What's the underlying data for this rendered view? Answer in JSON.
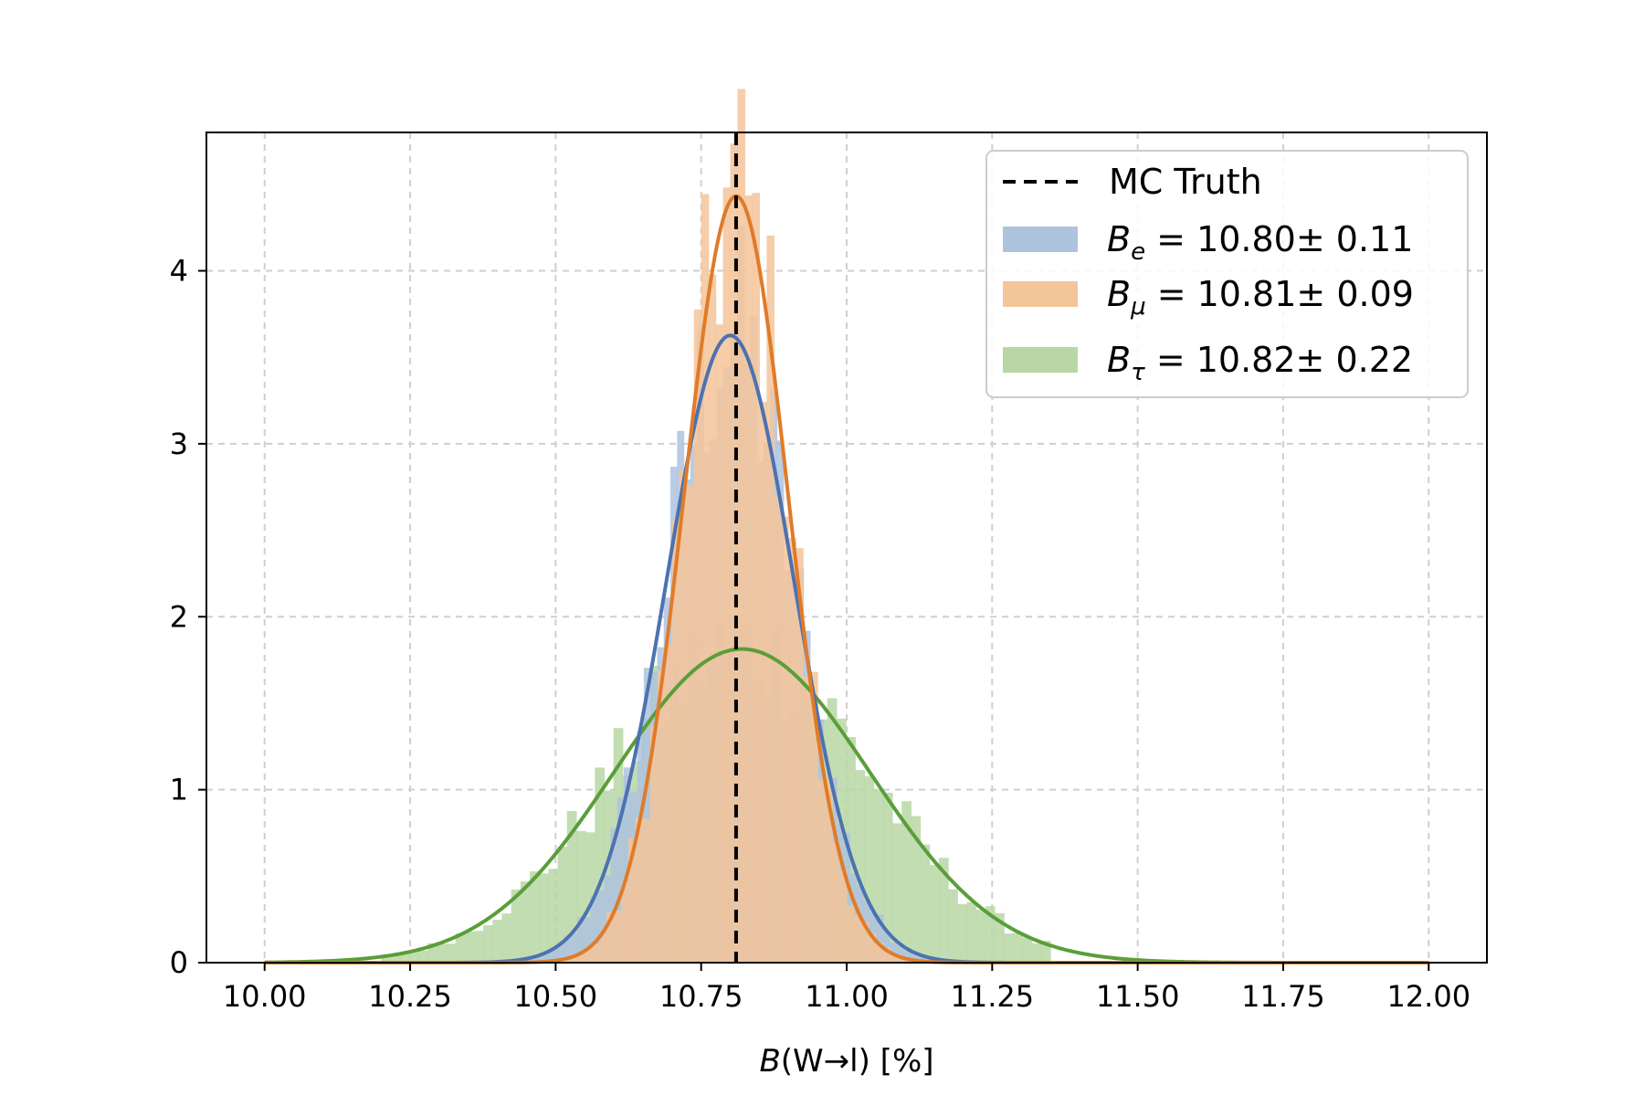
{
  "chart_data": {
    "type": "bar",
    "xlabel": {
      "symbol": "B",
      "args": "(W→l)",
      "unit": " [%]"
    },
    "ylabel": "",
    "xlim": [
      9.9,
      12.1
    ],
    "ylim": [
      0,
      4.8
    ],
    "xticks": [
      "10.00",
      "10.25",
      "10.50",
      "10.75",
      "11.00",
      "11.25",
      "11.50",
      "11.75",
      "12.00"
    ],
    "xtick_values": [
      10.0,
      10.25,
      10.5,
      10.75,
      11.0,
      11.25,
      11.5,
      11.75,
      12.0
    ],
    "yticks": [
      "0",
      "1",
      "2",
      "3",
      "4"
    ],
    "ytick_values": [
      0,
      1,
      2,
      3,
      4
    ],
    "grid": true,
    "legend_position": "upper right",
    "reference_line": {
      "label": "MC Truth",
      "x": 10.81,
      "style": "dashed",
      "color": "#000000"
    },
    "series": [
      {
        "name_symbol": "B",
        "name_sub": "e",
        "name_text": " =  10.80± 0.11",
        "color": "#4c72b0",
        "fill": "#aec3de",
        "mean": 10.8,
        "sigma": 0.11
      },
      {
        "name_symbol": "B",
        "name_sub": "μ",
        "name_text": " =  10.81± 0.09",
        "color": "#e07b29",
        "fill": "#f4c49a",
        "mean": 10.81,
        "sigma": 0.09
      },
      {
        "name_symbol": "B",
        "name_sub": "τ",
        "name_text": " =  10.82± 0.22",
        "color": "#5a9e39",
        "fill": "#b8d7a5",
        "mean": 10.82,
        "sigma": 0.22
      }
    ]
  }
}
